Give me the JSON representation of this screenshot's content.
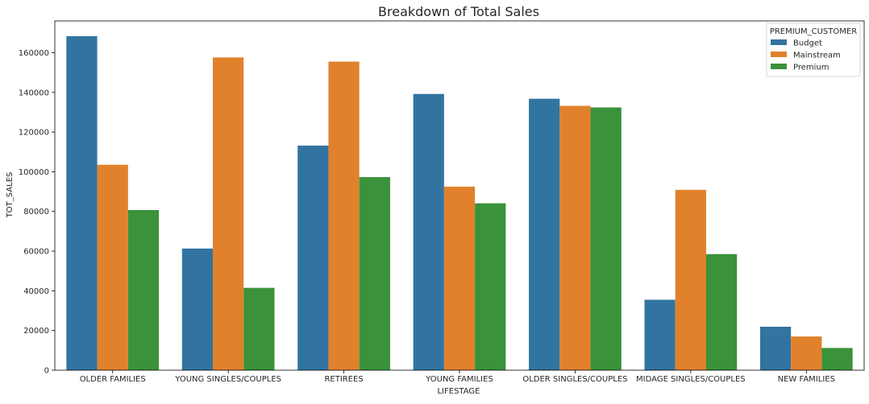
{
  "chart_data": {
    "type": "bar",
    "title": "Breakdown of Total Sales",
    "xlabel": "LIFESTAGE",
    "ylabel": "TOT_SALES",
    "ylim": [
      0,
      176000
    ],
    "yticks": [
      0,
      20000,
      40000,
      60000,
      80000,
      100000,
      120000,
      140000,
      160000
    ],
    "grid": false,
    "legend": {
      "title": "PREMIUM_CUSTOMER",
      "placement": "top-right"
    },
    "categories": [
      "OLDER FAMILIES",
      "YOUNG SINGLES/COUPLES",
      "RETIREES",
      "YOUNG FAMILIES",
      "OLDER SINGLES/COUPLES",
      "MIDAGE SINGLES/COUPLES",
      "NEW FAMILIES"
    ],
    "series": [
      {
        "name": "Budget",
        "color": "#3274a1",
        "values": [
          168300,
          61300,
          113200,
          139200,
          136800,
          35500,
          21900
        ]
      },
      {
        "name": "Mainstream",
        "color": "#e1812c",
        "values": [
          103500,
          157600,
          155500,
          92500,
          133200,
          90900,
          17000
        ]
      },
      {
        "name": "Premium",
        "color": "#3a923a",
        "values": [
          80700,
          41500,
          97300,
          84100,
          132400,
          58500,
          11200
        ]
      }
    ]
  }
}
